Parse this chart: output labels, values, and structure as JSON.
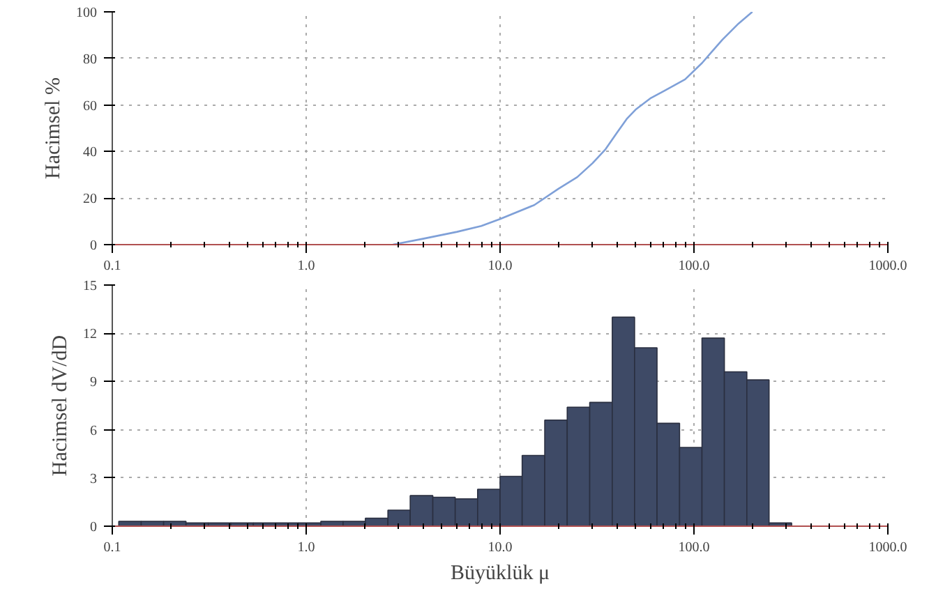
{
  "chart_data": [
    {
      "type": "line",
      "ylabel": "Hacimsel %",
      "x": [
        2.8,
        4,
        6,
        8,
        10,
        15,
        20,
        25,
        30,
        35,
        40,
        45,
        50,
        60,
        70,
        90,
        110,
        140,
        170,
        200
      ],
      "series": [
        {
          "color": "#7fa0d8",
          "values": [
            0,
            2.5,
            5.5,
            8,
            11,
            17,
            24,
            29,
            35,
            41,
            48,
            54,
            58,
            63,
            66,
            71,
            78,
            88,
            95,
            100
          ]
        }
      ],
      "log": "x",
      "xlim": [
        0.1,
        1000
      ],
      "xticks": [
        {
          "value": 0.1,
          "label": "0.1"
        },
        {
          "value": 1,
          "label": "1.0"
        },
        {
          "value": 10,
          "label": "10.0"
        },
        {
          "value": 100,
          "label": "100.0"
        },
        {
          "value": 1000,
          "label": "1000.0"
        }
      ],
      "ylim": [
        0,
        100
      ],
      "yticks": [
        0,
        20,
        40,
        60,
        80,
        100
      ],
      "grid": true
    },
    {
      "type": "histogram",
      "xlabel": "Büyüklük μ",
      "ylabel": "Hacimsel dV/dD",
      "color": "#3e4a66",
      "bins": [
        0.108,
        0.141,
        0.184,
        0.24,
        0.313,
        0.409,
        0.534,
        0.697,
        0.91,
        1.19,
        1.55,
        2.02,
        2.64,
        3.44,
        4.5,
        5.87,
        7.66,
        10,
        13,
        17,
        22.2,
        29,
        37.9,
        49.4,
        64.5,
        84.3,
        110,
        143.5,
        187.4,
        244,
        319
      ],
      "values": [
        0.3,
        0.3,
        0.3,
        0.2,
        0.2,
        0.2,
        0.2,
        0.2,
        0.2,
        0.3,
        0.3,
        0.5,
        1.0,
        1.9,
        1.8,
        1.7,
        2.3,
        3.1,
        4.4,
        6.6,
        7.4,
        7.7,
        13.0,
        11.1,
        6.4,
        4.9,
        11.7,
        9.6,
        9.1,
        0.2
      ],
      "log": "x",
      "xlim": [
        0.1,
        1000
      ],
      "xticks": [
        {
          "value": 0.1,
          "label": "0.1"
        },
        {
          "value": 1,
          "label": "1.0"
        },
        {
          "value": 10,
          "label": "10.0"
        },
        {
          "value": 100,
          "label": "100.0"
        },
        {
          "value": 1000,
          "label": "1000.0"
        }
      ],
      "ylim": [
        0,
        15
      ],
      "yticks": [
        0,
        3,
        6,
        9,
        12,
        15
      ],
      "grid": true
    }
  ]
}
